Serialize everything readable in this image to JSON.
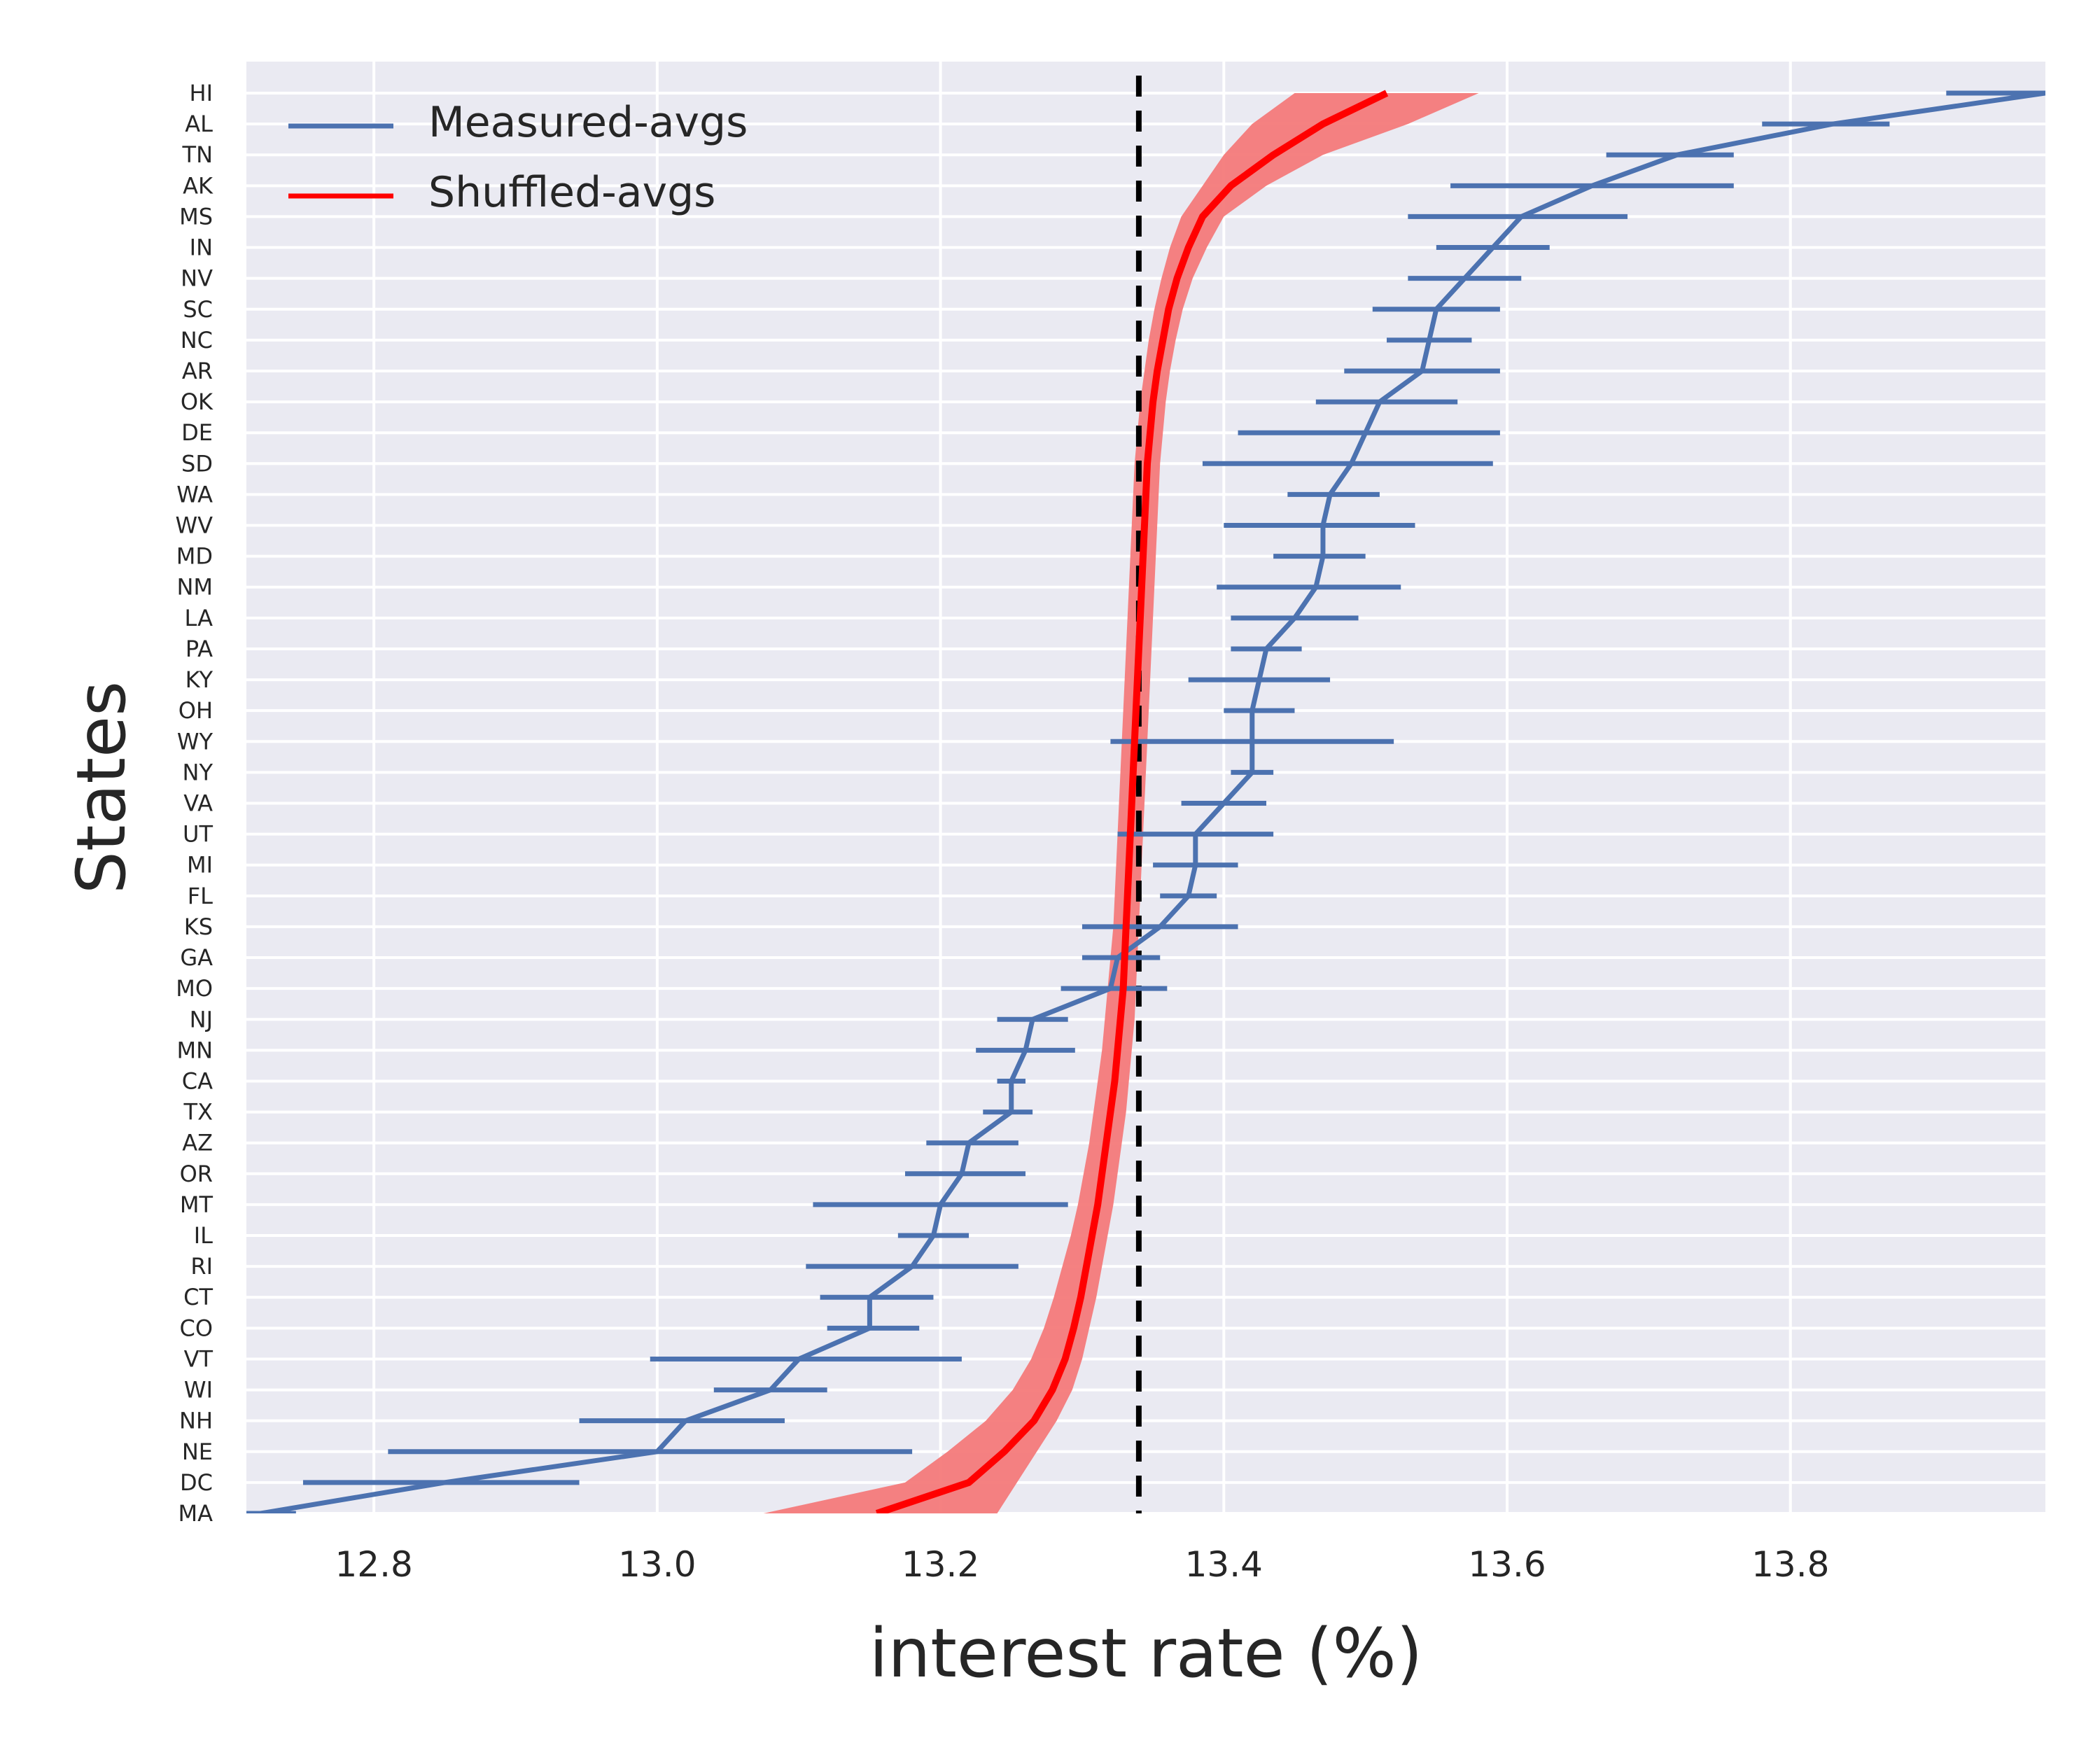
{
  "chart_data": {
    "type": "line",
    "xlabel": "interest rate (%)",
    "ylabel": "States",
    "xlim": [
      12.71,
      13.98
    ],
    "xticks": [
      "12.8",
      "13.0",
      "13.2",
      "13.4",
      "13.6",
      "13.8"
    ],
    "grid": true,
    "legend_position": "top-left",
    "reference_line": {
      "x": 13.34,
      "style": "dashed",
      "color": "#000000"
    },
    "states": [
      "HI",
      "AL",
      "TN",
      "AK",
      "MS",
      "IN",
      "NV",
      "SC",
      "NC",
      "AR",
      "OK",
      "DE",
      "SD",
      "WA",
      "WV",
      "MD",
      "NM",
      "LA",
      "PA",
      "KY",
      "OH",
      "WY",
      "NY",
      "VA",
      "UT",
      "MI",
      "FL",
      "KS",
      "GA",
      "MO",
      "NJ",
      "MN",
      "CA",
      "TX",
      "AZ",
      "OR",
      "MT",
      "IL",
      "RI",
      "CT",
      "CO",
      "VT",
      "WI",
      "NH",
      "NE",
      "DC",
      "MA"
    ],
    "series": [
      {
        "name": "Measured-avgs",
        "color": "#4c72b0",
        "values": [
          13.98,
          13.83,
          13.72,
          13.66,
          13.61,
          13.59,
          13.57,
          13.55,
          13.545,
          13.54,
          13.51,
          13.5,
          13.49,
          13.475,
          13.47,
          13.47,
          13.465,
          13.45,
          13.43,
          13.425,
          13.42,
          13.42,
          13.42,
          13.4,
          13.38,
          13.38,
          13.375,
          13.355,
          13.325,
          13.32,
          13.265,
          13.26,
          13.25,
          13.25,
          13.22,
          13.215,
          13.2,
          13.195,
          13.18,
          13.15,
          13.15,
          13.1,
          13.08,
          13.02,
          13.0,
          12.85,
          12.72
        ],
        "error_low": [
          13.91,
          13.78,
          13.67,
          13.56,
          13.53,
          13.55,
          13.53,
          13.505,
          13.515,
          13.485,
          13.465,
          13.41,
          13.385,
          13.445,
          13.4,
          13.435,
          13.395,
          13.405,
          13.405,
          13.375,
          13.4,
          13.32,
          13.405,
          13.37,
          13.325,
          13.35,
          13.355,
          13.3,
          13.3,
          13.285,
          13.24,
          13.225,
          13.24,
          13.23,
          13.19,
          13.175,
          13.11,
          13.17,
          13.105,
          13.115,
          13.12,
          12.995,
          13.04,
          12.945,
          12.81,
          12.75,
          12.66
        ],
        "error_high": [
          14.05,
          13.87,
          13.76,
          13.76,
          13.685,
          13.63,
          13.61,
          13.595,
          13.575,
          13.595,
          13.565,
          13.595,
          13.59,
          13.51,
          13.535,
          13.5,
          13.525,
          13.495,
          13.455,
          13.475,
          13.45,
          13.52,
          13.435,
          13.43,
          13.435,
          13.41,
          13.395,
          13.41,
          13.355,
          13.36,
          13.29,
          13.295,
          13.26,
          13.265,
          13.255,
          13.26,
          13.29,
          13.22,
          13.255,
          13.195,
          13.185,
          13.215,
          13.12,
          13.09,
          13.18,
          12.945,
          12.745
        ]
      },
      {
        "name": "Shuffled-avgs",
        "color": "#ff0000",
        "band_color": "#f47a7a",
        "values": [
          13.515,
          13.47,
          13.435,
          13.405,
          13.385,
          13.375,
          13.367,
          13.361,
          13.357,
          13.353,
          13.35,
          13.348,
          13.346,
          13.345,
          13.344,
          13.343,
          13.342,
          13.341,
          13.34,
          13.339,
          13.338,
          13.337,
          13.336,
          13.335,
          13.334,
          13.333,
          13.332,
          13.331,
          13.33,
          13.329,
          13.327,
          13.325,
          13.323,
          13.32,
          13.317,
          13.314,
          13.311,
          13.307,
          13.303,
          13.299,
          13.294,
          13.288,
          13.279,
          13.266,
          13.245,
          13.22,
          13.155
        ],
        "band_low": [
          13.45,
          13.42,
          13.4,
          13.385,
          13.37,
          13.362,
          13.356,
          13.351,
          13.347,
          13.344,
          13.341,
          13.339,
          13.337,
          13.336,
          13.335,
          13.334,
          13.333,
          13.332,
          13.331,
          13.33,
          13.329,
          13.328,
          13.327,
          13.326,
          13.325,
          13.324,
          13.323,
          13.322,
          13.32,
          13.318,
          13.316,
          13.314,
          13.311,
          13.308,
          13.305,
          13.301,
          13.297,
          13.292,
          13.286,
          13.28,
          13.273,
          13.264,
          13.251,
          13.232,
          13.205,
          13.175,
          13.075
        ],
        "band_high": [
          13.58,
          13.53,
          13.47,
          13.43,
          13.4,
          13.388,
          13.378,
          13.371,
          13.366,
          13.362,
          13.359,
          13.357,
          13.355,
          13.354,
          13.353,
          13.352,
          13.351,
          13.35,
          13.349,
          13.348,
          13.347,
          13.346,
          13.345,
          13.344,
          13.343,
          13.342,
          13.341,
          13.34,
          13.339,
          13.338,
          13.337,
          13.335,
          13.333,
          13.331,
          13.328,
          13.325,
          13.322,
          13.318,
          13.314,
          13.31,
          13.305,
          13.3,
          13.293,
          13.282,
          13.268,
          13.254,
          13.24
        ]
      }
    ]
  }
}
